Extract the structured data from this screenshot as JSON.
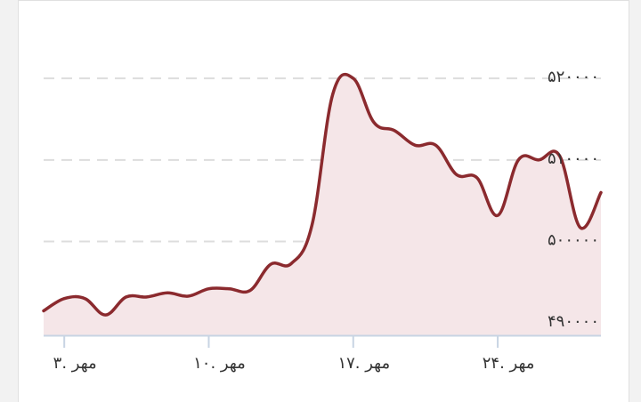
{
  "chart_data": {
    "type": "area",
    "title": "",
    "xlabel": "",
    "ylabel": "",
    "colors": {
      "line": "#8b2a2e",
      "fill": "#f5e6e8",
      "grid": "#dddddd",
      "axis": "#c8d4e3"
    },
    "y_ticks": [
      {
        "value": 490000,
        "label": "۴۹۰۰۰۰"
      },
      {
        "value": 500000,
        "label": "۵۰۰۰۰۰"
      },
      {
        "value": 510000,
        "label": "۵۱۰۰۰۰"
      },
      {
        "value": 520000,
        "label": "۵۲۰۰۰۰"
      }
    ],
    "x_ticks": [
      {
        "value": 3,
        "label": "۳. مهر"
      },
      {
        "value": 10,
        "label": "۱۰. مهر"
      },
      {
        "value": 17,
        "label": "۱۷. مهر"
      },
      {
        "value": 24,
        "label": "۲۴. مهر"
      }
    ],
    "xlim": [
      2,
      29
    ],
    "ylim": [
      488500,
      529500
    ],
    "grid": true,
    "series": [
      {
        "x": [
          2,
          3,
          4,
          5,
          6,
          7,
          8,
          9,
          10,
          11,
          12,
          13,
          14,
          15,
          16,
          17,
          18,
          19,
          20,
          21,
          22,
          23,
          24,
          25,
          26,
          27,
          28,
          29
        ],
        "values": [
          491500,
          493000,
          493000,
          491000,
          493200,
          493200,
          493700,
          493300,
          494200,
          494200,
          494000,
          497200,
          497300,
          502000,
          518000,
          520000,
          514600,
          513600,
          511800,
          511800,
          508200,
          507800,
          503200,
          510000,
          510000,
          510500,
          501700,
          506000
        ]
      }
    ]
  }
}
